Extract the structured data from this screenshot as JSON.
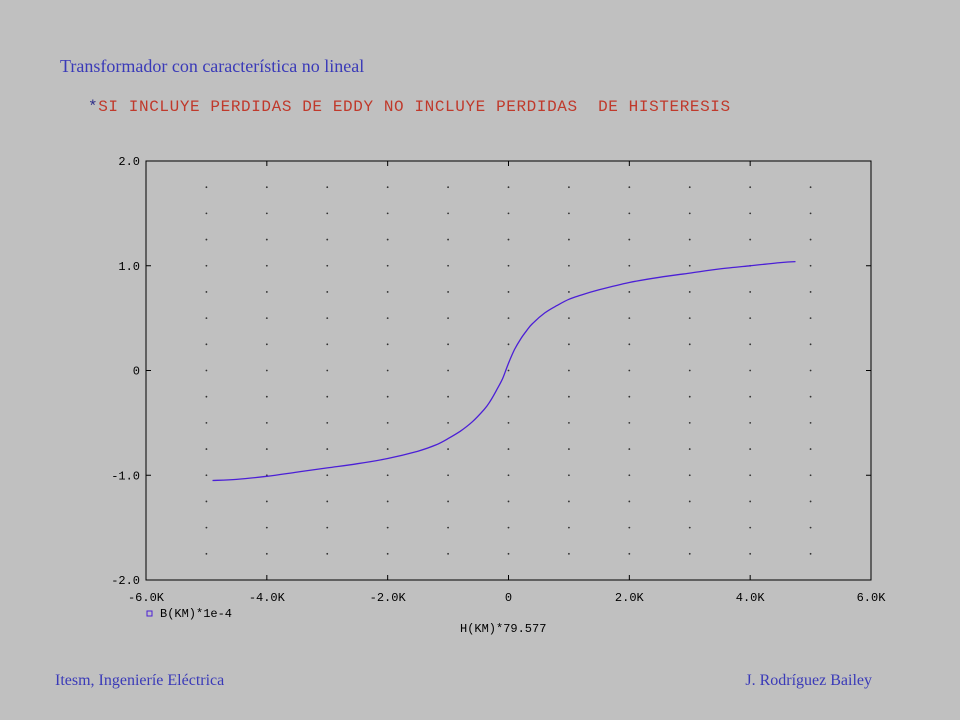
{
  "header": {
    "title": "Transformador con característica  no lineal",
    "subtitle_star": "*",
    "subtitle": "SI INCLUYE PERDIDAS DE EDDY NO INCLUYE PERDIDAS  DE HISTERESIS"
  },
  "footer": {
    "left": "Itesm, Ingenieríe Eléctrica",
    "right": "J. Rodríguez Bailey"
  },
  "colors": {
    "curve": "#4b1fd6",
    "title": "#3a3ab8",
    "subtitle": "#c0392b",
    "background": "#c0c0c0"
  },
  "chart_data": {
    "type": "line",
    "title": "",
    "xlabel": "H(KM)*79.577",
    "ylabel": "",
    "xlim": [
      -6000,
      6000
    ],
    "ylim": [
      -2.0,
      2.0
    ],
    "x_tick_labels": [
      "-6.0K",
      "-4.0K",
      "-2.0K",
      "0",
      "2.0K",
      "4.0K",
      "6.0K"
    ],
    "x_ticks": [
      -6000,
      -4000,
      -2000,
      0,
      2000,
      4000,
      6000
    ],
    "y_tick_labels": [
      "2.0",
      "1.0",
      "0",
      "-1.0",
      "-2.0"
    ],
    "y_ticks": [
      2.0,
      1.0,
      0,
      -1.0,
      -2.0
    ],
    "grid": "dotted",
    "legend": {
      "placement": "bottom-left",
      "entries": [
        "B(KM)*1e-4"
      ]
    },
    "series": [
      {
        "name": "B(KM)*1e-4",
        "x": [
          -4900,
          -4500,
          -4000,
          -3500,
          -3000,
          -2500,
          -2000,
          -1500,
          -1200,
          -1000,
          -800,
          -600,
          -400,
          -300,
          -200,
          -100,
          0,
          100,
          200,
          300,
          400,
          600,
          800,
          1000,
          1200,
          1500,
          2000,
          2500,
          3000,
          3500,
          4000,
          4500,
          4750
        ],
        "y": [
          -1.05,
          -1.04,
          -1.01,
          -0.97,
          -0.93,
          -0.89,
          -0.84,
          -0.77,
          -0.71,
          -0.65,
          -0.58,
          -0.49,
          -0.37,
          -0.29,
          -0.19,
          -0.08,
          0.07,
          0.2,
          0.3,
          0.38,
          0.45,
          0.55,
          0.62,
          0.68,
          0.72,
          0.77,
          0.84,
          0.89,
          0.93,
          0.97,
          1.0,
          1.03,
          1.04
        ]
      }
    ]
  }
}
